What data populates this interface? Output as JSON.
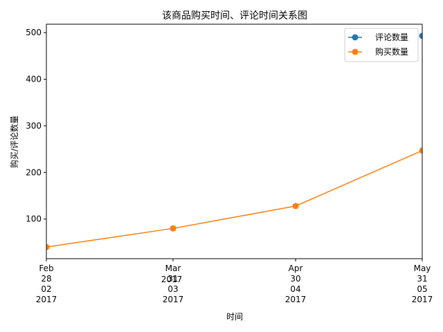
{
  "chart_data": {
    "type": "line",
    "title": "该商品购买时间、评论时间关系图",
    "xlabel": "时间",
    "ylabel": "购买/评论数量",
    "x": [
      "2017-02-28",
      "2017-03-31",
      "2017-04-30",
      "2017-05-31"
    ],
    "x_tick_labels": [
      {
        "month": "Feb",
        "day": "28",
        "mm": "02",
        "year": "2017"
      },
      {
        "month": "Mar",
        "day": "31",
        "mm": "03",
        "year": "2017"
      },
      {
        "month": "Apr",
        "day": "30",
        "mm": "04",
        "year": "2017"
      },
      {
        "month": "May",
        "day": "31",
        "mm": "05",
        "year": "2017"
      }
    ],
    "x_offset_label": "2017",
    "y_ticks": [
      100,
      200,
      300,
      400,
      500
    ],
    "ylim": [
      15,
      518
    ],
    "series": [
      {
        "name": "评论数量",
        "color": "#1f77b4",
        "points": [
          {
            "x": "2017-05-31",
            "y": 493
          }
        ]
      },
      {
        "name": "购买数量",
        "color": "#ff7f0e",
        "points": [
          {
            "x": "2017-02-28",
            "y": 40
          },
          {
            "x": "2017-03-31",
            "y": 80
          },
          {
            "x": "2017-04-30",
            "y": 128
          },
          {
            "x": "2017-05-31",
            "y": 247
          }
        ]
      }
    ],
    "legend_position": "top-right",
    "grid": false
  }
}
